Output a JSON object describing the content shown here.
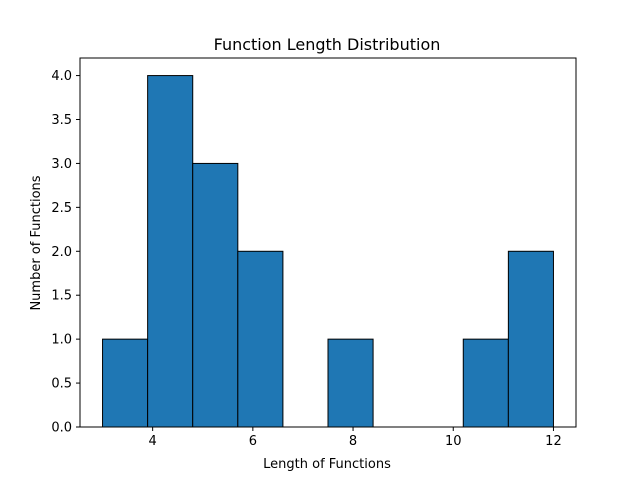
{
  "chart_data": {
    "type": "bar",
    "subtype": "histogram",
    "title": "Function Length Distribution",
    "xlabel": "Length of Functions",
    "ylabel": "Number of Functions",
    "xlim": [
      2.55,
      12.45
    ],
    "ylim": [
      0,
      4.2
    ],
    "xticks": [
      4,
      6,
      8,
      10,
      12
    ],
    "yticks": [
      0.0,
      0.5,
      1.0,
      1.5,
      2.0,
      2.5,
      3.0,
      3.5,
      4.0
    ],
    "bin_edges": [
      3.0,
      3.9,
      4.8,
      5.7,
      6.6,
      7.5,
      8.4,
      9.3,
      10.2,
      11.1,
      12.0
    ],
    "values": [
      1,
      4,
      3,
      2,
      0,
      1,
      0,
      0,
      1,
      2
    ],
    "bar_color": "#1f77b4",
    "edge_color": "#000000",
    "grid": false
  }
}
